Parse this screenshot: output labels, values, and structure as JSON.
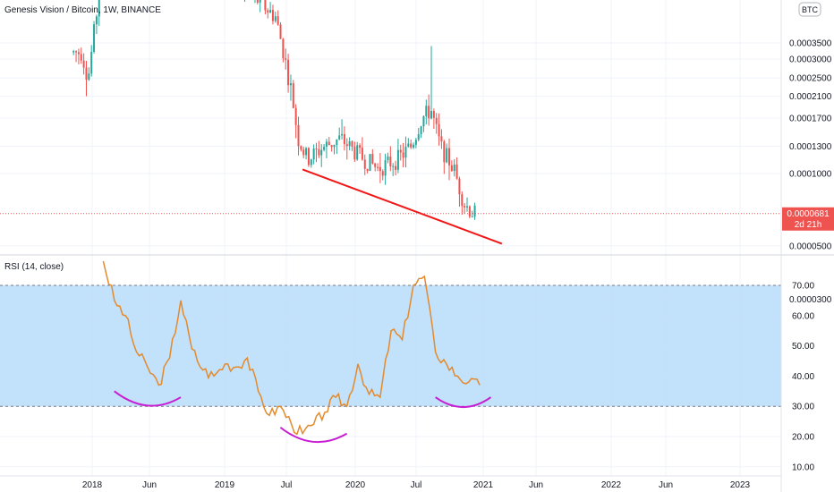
{
  "title": "Genesis Vision / Bitcoin, 1W, BINANCE",
  "currency_badge": "BTC",
  "colors": {
    "up": "#26a69a",
    "down": "#ef5350",
    "trendline": "#f21616",
    "rsi_line": "#e38a2c",
    "rsi_band": "#bbdefb",
    "arc": "#c71ed1",
    "last_price_bg": "#ef5350"
  },
  "last_price": {
    "label": "0.0000681",
    "countdown": "2d 21h"
  },
  "rsi_label": "RSI (14, close)",
  "price_axis": {
    "ticks": [
      "0.0003500",
      "0.0003000",
      "0.0002500",
      "0.0002100",
      "0.0001700",
      "0.0001300",
      "0.0001000",
      "0.0000500",
      "0.0000300"
    ]
  },
  "rsi_axis": {
    "ticks": [
      "70.00",
      "60.00",
      "50.00",
      "40.00",
      "30.00",
      "20.00",
      "10.00"
    ]
  },
  "time_axis": {
    "labels": [
      "2018",
      "Jun",
      "2019",
      "Jul",
      "2020",
      "Jul",
      "2021",
      "Jun",
      "2022",
      "Jun",
      "2023"
    ]
  },
  "chart_data": [
    {
      "type": "candlestick",
      "title": "Genesis Vision / Bitcoin, 1W, BINANCE",
      "interval": "1W",
      "scale": "log",
      "date_range": [
        "2017-12",
        "2020-12"
      ],
      "last_value": 6.81e-05,
      "annotations": [
        {
          "type": "trendline",
          "from": [
            "2019-08",
            0.000104
          ],
          "to": [
            "2021-02",
            5.1e-05
          ]
        }
      ]
    },
    {
      "type": "line",
      "title": "RSI (14, close)",
      "ylim": [
        5,
        80
      ],
      "bands": [
        30,
        70
      ],
      "x": [
        "2018-02",
        "2018-03",
        "2018-04",
        "2018-05",
        "2018-06",
        "2018-07",
        "2018-08",
        "2018-09",
        "2018-10",
        "2018-11",
        "2018-12",
        "2019-01",
        "2019-02",
        "2019-03",
        "2019-04",
        "2019-05",
        "2019-06",
        "2019-07",
        "2019-08",
        "2019-09",
        "2019-10",
        "2019-11",
        "2019-12",
        "2020-01",
        "2020-02",
        "2020-03",
        "2020-04",
        "2020-05",
        "2020-06",
        "2020-07",
        "2020-08",
        "2020-09",
        "2020-10",
        "2020-11",
        "2020-12"
      ],
      "values": [
        78,
        65,
        60,
        48,
        43,
        37,
        46,
        65,
        49,
        42,
        40,
        44,
        43,
        46,
        35,
        27,
        30,
        24,
        21,
        24,
        28,
        33,
        30,
        44,
        34,
        33,
        55,
        52,
        70,
        73,
        48,
        44,
        40,
        38,
        37
      ],
      "annotations": [
        {
          "type": "arc",
          "from": [
            "2018-03",
            35
          ],
          "to": [
            "2018-09",
            33
          ]
        },
        {
          "type": "arc",
          "from": [
            "2019-06",
            23
          ],
          "to": [
            "2019-12",
            21
          ]
        },
        {
          "type": "arc",
          "from": [
            "2020-08",
            33
          ],
          "to": [
            "2021-01",
            33
          ]
        }
      ]
    }
  ]
}
